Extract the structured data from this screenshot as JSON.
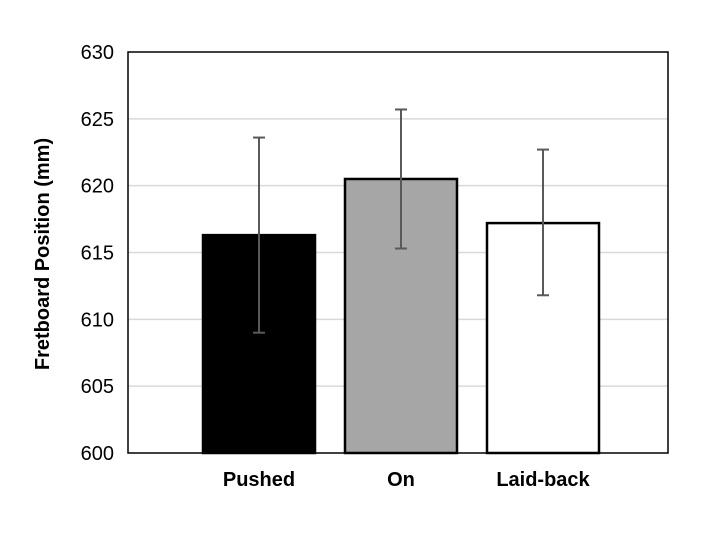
{
  "chart_data": {
    "type": "bar",
    "title": "",
    "xlabel": "",
    "ylabel": "Fretboard Position (mm)",
    "ylim": [
      600,
      630
    ],
    "yticks": [
      600,
      605,
      610,
      615,
      620,
      625,
      630
    ],
    "ytick_labels": [
      "600",
      "605",
      "610",
      "615",
      "620",
      "625",
      "630"
    ],
    "categories": [
      "Pushed",
      "On",
      "Laid-back"
    ],
    "values": [
      616.3,
      620.5,
      617.2
    ],
    "error_low": [
      609.0,
      615.3,
      611.8
    ],
    "error_high": [
      623.6,
      625.7,
      622.7
    ],
    "bar_colors": [
      "#000000",
      "#a6a6a6",
      "#ffffff"
    ],
    "bar_edge_color": "#000000",
    "error_bar_color": "#595959",
    "grid": true,
    "grid_color": "#d9d9d9",
    "legend": "none"
  }
}
